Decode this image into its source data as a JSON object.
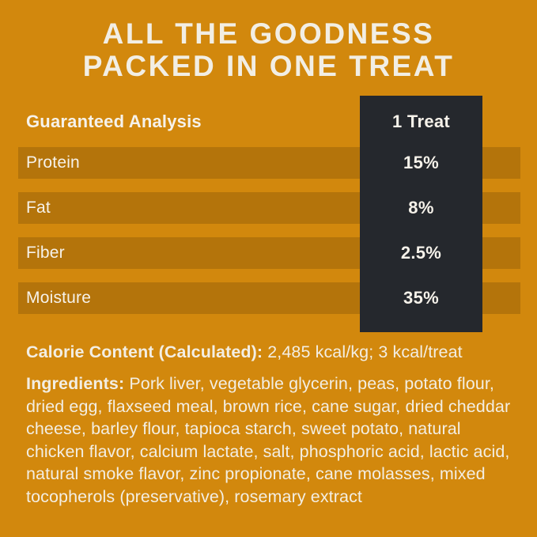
{
  "colors": {
    "background": "#D2880D",
    "row_band": "rgba(0,0,0,0.14)",
    "dark_column": "#25282D",
    "text": "#F4F0E8"
  },
  "title": {
    "line1": "ALL THE GOODNESS",
    "line2": "PACKED IN ONE TREAT"
  },
  "table": {
    "header": {
      "label": "Guaranteed Analysis",
      "value": "1 Treat"
    },
    "rows": [
      {
        "label": "Protein",
        "value": "15%"
      },
      {
        "label": "Fat",
        "value": "8%"
      },
      {
        "label": "Fiber",
        "value": "2.5%"
      },
      {
        "label": "Moisture",
        "value": "35%"
      }
    ]
  },
  "calorie": {
    "label": "Calorie Content (Calculated):",
    "value": "2,485 kcal/kg; 3 kcal/treat"
  },
  "ingredients": {
    "label": "Ingredients:",
    "text": "Pork liver, vegetable glycerin, peas, potato flour, dried egg, flaxseed meal, brown rice, cane sugar, dried cheddar cheese, barley flour, tapioca starch, sweet potato, natural chicken flavor, calcium lactate, salt, phosphoric acid, lactic acid, natural smoke flavor, zinc propionate, cane molasses, mixed tocopherols (preservative), rosemary extract"
  }
}
